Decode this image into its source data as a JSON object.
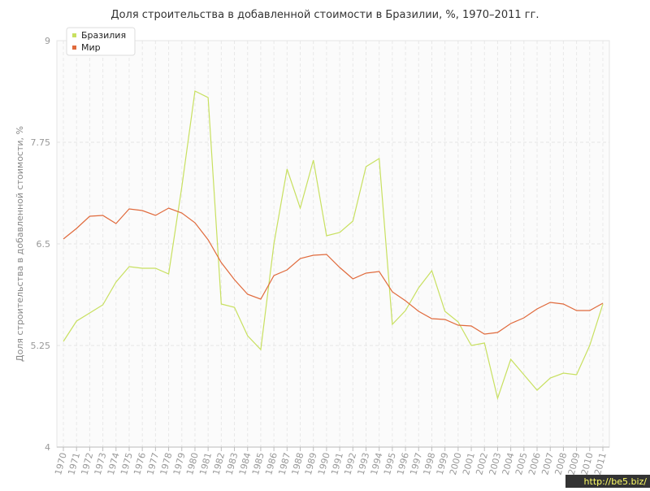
{
  "chart_data": {
    "type": "line",
    "title": "Доля строительства в добавленной стоимости в Бразилии, %, 1970–2011 гг.",
    "y_label": "Доля строительства в добавленной стоимости, %",
    "watermark": "http://be5.biz/",
    "categories": [
      "1970",
      "1971",
      "1972",
      "1973",
      "1974",
      "1975",
      "1976",
      "1977",
      "1978",
      "1979",
      "1980",
      "1981",
      "1982",
      "1983",
      "1984",
      "1985",
      "1986",
      "1987",
      "1988",
      "1989",
      "1990",
      "1991",
      "1992",
      "1993",
      "1994",
      "1995",
      "1996",
      "1997",
      "1998",
      "1999",
      "2000",
      "2001",
      "2002",
      "2003",
      "2004",
      "2005",
      "2006",
      "2007",
      "2008",
      "2009",
      "2010",
      "2011"
    ],
    "series": [
      {
        "name": "Бразилия",
        "color": "#c8e060",
        "values": [
          5.3,
          5.55,
          5.65,
          5.75,
          6.03,
          6.22,
          6.2,
          6.2,
          6.13,
          7.2,
          8.38,
          8.3,
          5.76,
          5.72,
          5.37,
          5.2,
          6.5,
          7.42,
          6.94,
          7.53,
          6.6,
          6.64,
          6.78,
          7.45,
          7.55,
          5.51,
          5.68,
          5.96,
          6.17,
          5.67,
          5.54,
          5.25,
          5.28,
          4.6,
          5.08,
          4.89,
          4.7,
          4.85,
          4.91,
          4.89,
          5.25,
          5.76
        ]
      },
      {
        "name": "Мир",
        "color": "#e06a3c",
        "values": [
          6.56,
          6.69,
          6.84,
          6.85,
          6.75,
          6.93,
          6.91,
          6.85,
          6.94,
          6.88,
          6.76,
          6.55,
          6.27,
          6.06,
          5.88,
          5.82,
          6.11,
          6.18,
          6.32,
          6.36,
          6.37,
          6.21,
          6.07,
          6.14,
          6.16,
          5.91,
          5.8,
          5.67,
          5.58,
          5.57,
          5.5,
          5.49,
          5.39,
          5.41,
          5.52,
          5.59,
          5.7,
          5.78,
          5.76,
          5.68,
          5.68,
          5.77
        ]
      }
    ],
    "ylim": [
      4,
      9
    ],
    "yticks": [
      4,
      5.25,
      6.5,
      7.75,
      9
    ],
    "grid": true,
    "legend": "top-left"
  }
}
